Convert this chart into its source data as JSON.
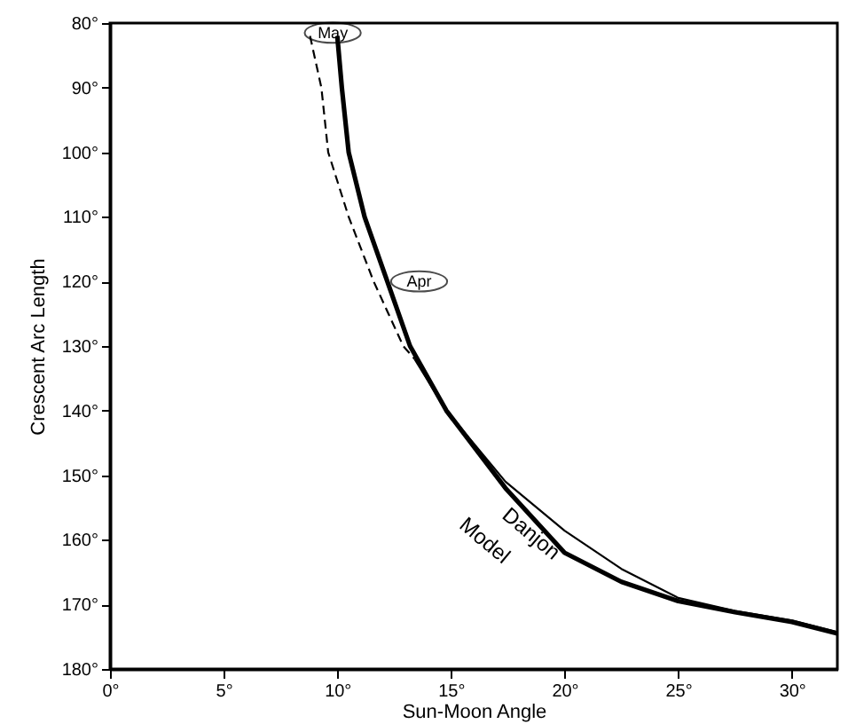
{
  "chart_data": {
    "type": "line",
    "xlabel": "Sun-Moon Angle",
    "ylabel": "Crescent Arc Length",
    "xlim": [
      0,
      32
    ],
    "ylim": [
      180,
      80
    ],
    "xticks": [
      {
        "value": 0,
        "label": "0°"
      },
      {
        "value": 5,
        "label": "5°"
      },
      {
        "value": 10,
        "label": "10°"
      },
      {
        "value": 15,
        "label": "15°"
      },
      {
        "value": 20,
        "label": "20°"
      },
      {
        "value": 25,
        "label": "25°"
      },
      {
        "value": 30,
        "label": "30°"
      }
    ],
    "yticks": [
      {
        "value": 80,
        "label": "80°"
      },
      {
        "value": 90,
        "label": "90°"
      },
      {
        "value": 100,
        "label": "100°"
      },
      {
        "value": 110,
        "label": "110°"
      },
      {
        "value": 120,
        "label": "120°"
      },
      {
        "value": 130,
        "label": "130°"
      },
      {
        "value": 140,
        "label": "140°"
      },
      {
        "value": 150,
        "label": "150°"
      },
      {
        "value": 160,
        "label": "160°"
      },
      {
        "value": 170,
        "label": "170°"
      },
      {
        "value": 180,
        "label": "180°"
      }
    ],
    "grid": false,
    "marker": "none",
    "series": [
      {
        "name": "Model",
        "color": "#000000",
        "line_style": "solid",
        "x": [
          10,
          10.2,
          10.5,
          11.2,
          12.2,
          13.2,
          14.8,
          17.4,
          20,
          22.5,
          25,
          27.5,
          30,
          32
        ],
        "values": [
          82,
          90,
          100,
          110,
          120,
          130,
          140,
          152,
          162,
          166.5,
          169.5,
          171.2,
          172.7,
          174.5
        ]
      },
      {
        "name": "Danjon",
        "color": "#000000",
        "line_style": "solid",
        "x": [
          13.4,
          14.8,
          17.4,
          20,
          22.5,
          25,
          27.5,
          30,
          32
        ],
        "values": [
          132,
          140,
          151,
          158.6,
          164.5,
          169,
          171,
          172.5,
          174.3
        ]
      },
      {
        "color": "#000000",
        "line_style": "dashed",
        "x": [
          8.8,
          9.3,
          9.6,
          10.5,
          11.6,
          12.9,
          13.4
        ],
        "values": [
          82,
          90,
          100,
          110,
          120,
          130,
          132
        ]
      }
    ],
    "annotations": [
      {
        "text": "May",
        "x": 9.8,
        "y": 81.5
      },
      {
        "text": "Apr",
        "x": 13.6,
        "y": 120
      }
    ]
  }
}
